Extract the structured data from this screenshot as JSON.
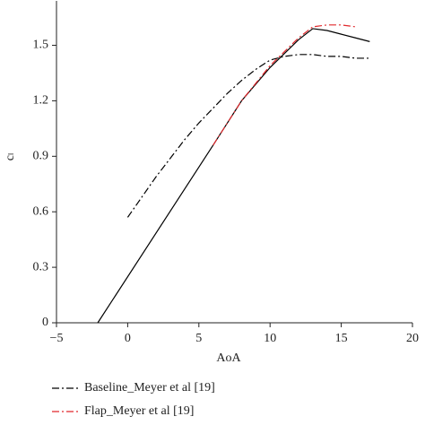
{
  "chart_data": {
    "type": "line",
    "x_label": "AoA",
    "y_label": "cₗ",
    "xlim": [
      -5,
      20
    ],
    "ylim": [
      0,
      1.74
    ],
    "xticks": [
      {
        "value": -5,
        "label": "−5"
      },
      0,
      5,
      10,
      15,
      20
    ],
    "yticks": [
      0,
      0.3,
      0.6,
      0.9,
      1.2,
      1.5
    ],
    "series": [
      {
        "color": "#000000",
        "dash": "solid",
        "x": [
          -2.1,
          6,
          8,
          10,
          12,
          13,
          14,
          15,
          16,
          17
        ],
        "values": [
          0,
          0.96,
          1.2,
          1.38,
          1.53,
          1.59,
          1.58,
          1.56,
          1.54,
          1.52
        ]
      },
      {
        "name": "Baseline_Meyer et al [19]",
        "color": "#000000",
        "dash": "dashdot",
        "x": [
          0,
          1,
          2,
          3,
          4,
          5,
          6,
          7,
          8,
          9,
          10,
          11,
          12,
          13,
          14,
          15,
          16,
          17
        ],
        "values": [
          0.57,
          0.68,
          0.79,
          0.89,
          0.99,
          1.08,
          1.16,
          1.24,
          1.31,
          1.37,
          1.42,
          1.44,
          1.45,
          1.45,
          1.44,
          1.44,
          1.43,
          1.43
        ]
      },
      {
        "name": "Flap_Meyer et al [19]",
        "color": "#e0282c",
        "dash": "dashdot",
        "x": [
          6,
          8,
          10,
          12,
          13,
          14,
          15,
          16
        ],
        "values": [
          0.96,
          1.2,
          1.39,
          1.54,
          1.6,
          1.61,
          1.61,
          1.6
        ]
      }
    ]
  }
}
